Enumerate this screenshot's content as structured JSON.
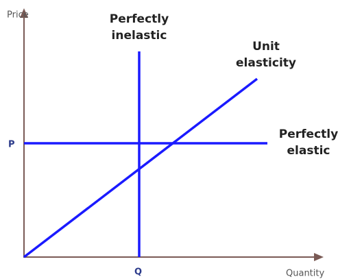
{
  "axes": {
    "y_label": "Price",
    "x_label": "Quantity",
    "y_marker": "P",
    "x_marker": "Q"
  },
  "curves": [
    {
      "label": [
        "Perfectly",
        "inelastic"
      ]
    },
    {
      "label": [
        "Unit",
        "elasticity"
      ]
    },
    {
      "label": [
        "Perfectly",
        "elastic"
      ]
    }
  ]
}
